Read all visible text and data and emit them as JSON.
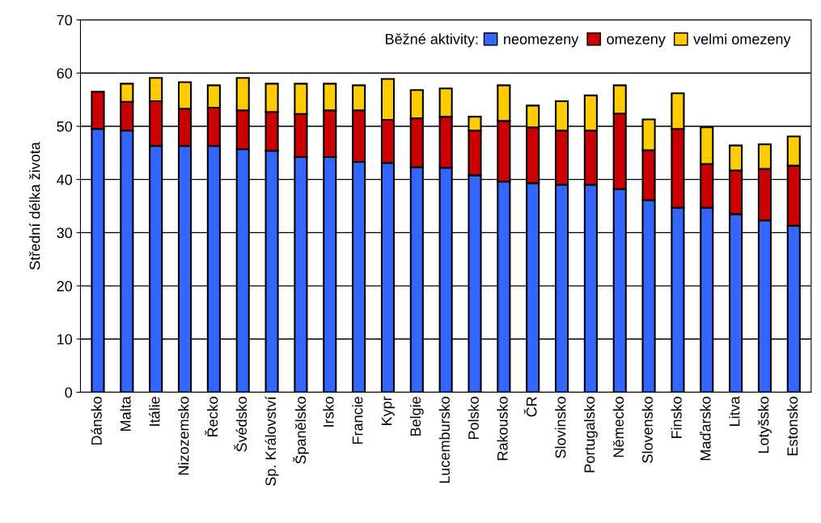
{
  "chart_data": {
    "type": "bar",
    "stacked": true,
    "ylabel": "Střední délka života",
    "legend_title": "Běžné aktivity:",
    "categories": [
      "Dánsko",
      "Malta",
      "Itálie",
      "Nizozemsko",
      "Řecko",
      "Švédsko",
      "Sp. Království",
      "Španělsko",
      "Irsko",
      "Francie",
      "Kypr",
      "Belgie",
      "Lucembursko",
      "Polsko",
      "Rakousko",
      "ČR",
      "Slovinsko",
      "Portugalsko",
      "Německo",
      "Slovensko",
      "Finsko",
      "Maďarsko",
      "Litva",
      "Lotyšsko",
      "Estonsko"
    ],
    "series": [
      {
        "name": "neomezeny",
        "color": "#3366ff",
        "values": [
          49.5,
          49.2,
          46.3,
          46.3,
          46.3,
          45.7,
          45.4,
          44.2,
          44.2,
          43.3,
          43.1,
          42.3,
          42.2,
          40.8,
          39.6,
          39.3,
          39.0,
          39.0,
          38.2,
          36.1,
          34.7,
          34.7,
          33.5,
          32.3,
          31.3
        ]
      },
      {
        "name": "omezeny",
        "color": "#cc0000",
        "values": [
          7.0,
          5.4,
          8.4,
          7.0,
          7.2,
          7.3,
          7.3,
          8.1,
          8.8,
          9.7,
          8.1,
          9.2,
          9.6,
          8.4,
          11.4,
          10.5,
          10.2,
          10.2,
          14.2,
          9.4,
          14.8,
          8.2,
          8.2,
          9.7,
          11.3
        ]
      },
      {
        "name": "velmi omezeny",
        "color": "#ffcc00",
        "values": [
          null,
          3.4,
          4.4,
          5.0,
          4.2,
          6.1,
          5.3,
          5.7,
          5.0,
          4.7,
          7.7,
          5.3,
          5.3,
          2.6,
          6.7,
          4.1,
          5.5,
          6.6,
          5.3,
          5.8,
          6.7,
          6.9,
          4.7,
          4.6,
          5.5
        ]
      }
    ],
    "ylim": [
      0,
      70
    ],
    "yticks": [
      0,
      10,
      20,
      30,
      40,
      50,
      60,
      70
    ],
    "grid": "y",
    "legend": "top right"
  }
}
